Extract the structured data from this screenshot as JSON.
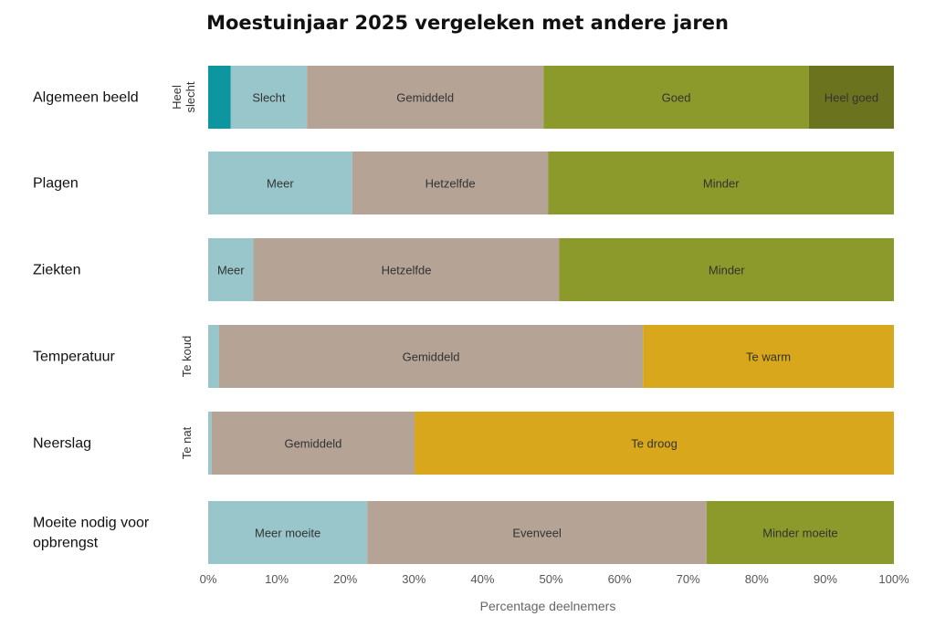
{
  "chart_data": {
    "type": "bar",
    "orientation": "horizontal",
    "stacked": "percent",
    "title": "Moestuinjaar 2025 vergeleken met andere jaren",
    "xlabel": "Percentage deelnemers",
    "ylabel": "",
    "xlim": [
      0,
      100
    ],
    "xticks": [
      "0%",
      "10%",
      "20%",
      "30%",
      "40%",
      "50%",
      "60%",
      "70%",
      "80%",
      "90%",
      "100%"
    ],
    "grid": false,
    "legend": "none",
    "categories": [
      {
        "label": "Algemeen beeld",
        "segments": [
          {
            "name": "Heel slecht",
            "value": 3.3,
            "color": "#0E96A0",
            "label_position": "outside-left"
          },
          {
            "name": "Slecht",
            "value": 11.1,
            "color": "#98C6CB"
          },
          {
            "name": "Gemiddeld",
            "value": 34.5,
            "color": "#B5A396"
          },
          {
            "name": "Goed",
            "value": 38.7,
            "color": "#8B9A2A"
          },
          {
            "name": "Heel goed",
            "value": 12.4,
            "color": "#6C731F"
          }
        ]
      },
      {
        "label": "Plagen",
        "segments": [
          {
            "name": "Meer",
            "value": 21.0,
            "color": "#98C6CB"
          },
          {
            "name": "Hetzelfde",
            "value": 28.6,
            "color": "#B5A396"
          },
          {
            "name": "Minder",
            "value": 50.4,
            "color": "#8B9A2A"
          }
        ]
      },
      {
        "label": "Ziekten",
        "segments": [
          {
            "name": "Meer",
            "value": 6.6,
            "color": "#98C6CB"
          },
          {
            "name": "Hetzelfde",
            "value": 44.6,
            "color": "#B5A396"
          },
          {
            "name": "Minder",
            "value": 48.8,
            "color": "#8B9A2A"
          }
        ]
      },
      {
        "label": "Temperatuur",
        "segments": [
          {
            "name": "Te koud",
            "value": 1.6,
            "color": "#98C6CB",
            "label_position": "outside-left"
          },
          {
            "name": "Gemiddeld",
            "value": 61.8,
            "color": "#B5A396"
          },
          {
            "name": "Te warm",
            "value": 36.6,
            "color": "#D9A71C"
          }
        ]
      },
      {
        "label": "Neerslag",
        "segments": [
          {
            "name": "Te nat",
            "value": 0.5,
            "color": "#98C6CB",
            "label_position": "outside-left"
          },
          {
            "name": "Gemiddeld",
            "value": 29.6,
            "color": "#B5A396"
          },
          {
            "name": "Te droog",
            "value": 69.9,
            "color": "#D9A71C"
          }
        ]
      },
      {
        "label": "Moeite nodig voor opbrengst",
        "segments": [
          {
            "name": "Meer moeite",
            "value": 23.2,
            "color": "#98C6CB"
          },
          {
            "name": "Evenveel",
            "value": 49.5,
            "color": "#B5A396"
          },
          {
            "name": "Minder moeite",
            "value": 27.3,
            "color": "#8B9A2A"
          }
        ]
      }
    ]
  }
}
